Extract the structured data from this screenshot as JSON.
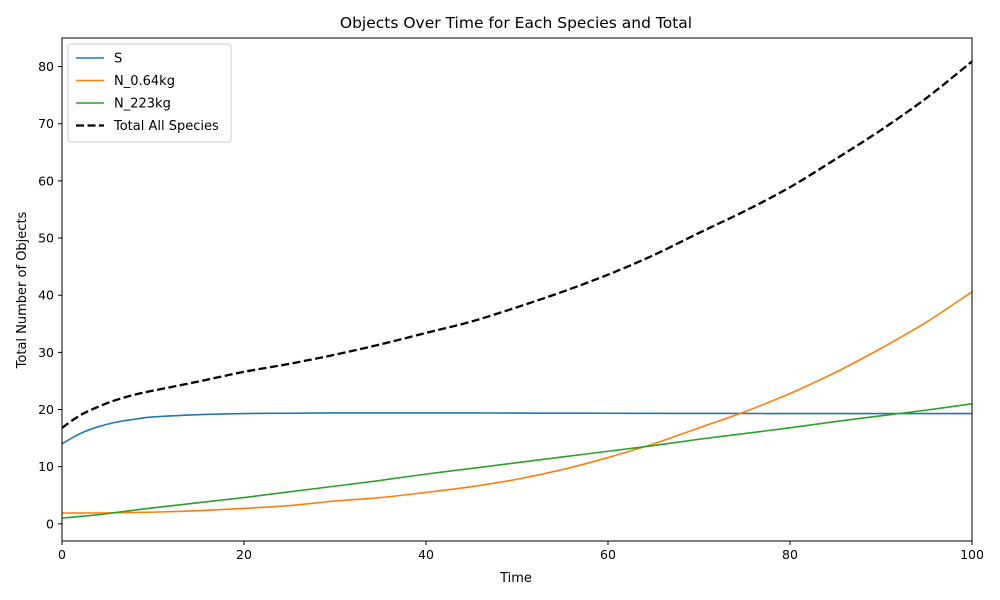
{
  "chart_data": {
    "type": "line",
    "title": "Objects Over Time for Each Species and Total",
    "xlabel": "Time",
    "ylabel": "Total Number of Objects",
    "xlim": [
      0,
      100
    ],
    "ylim": [
      -3,
      85
    ],
    "xticks": [
      0,
      20,
      40,
      60,
      80,
      100
    ],
    "yticks": [
      0,
      10,
      20,
      30,
      40,
      50,
      60,
      70,
      80
    ],
    "grid": false,
    "legend_position": "top-left",
    "x": [
      0,
      2,
      4,
      6,
      8,
      10,
      15,
      20,
      25,
      30,
      35,
      40,
      45,
      50,
      55,
      60,
      65,
      70,
      75,
      80,
      85,
      90,
      95,
      100
    ],
    "series": [
      {
        "name": "S",
        "color": "#1f77b4",
        "style": "solid",
        "values": [
          14.0,
          15.8,
          17.0,
          17.8,
          18.3,
          18.7,
          19.1,
          19.3,
          19.35,
          19.4,
          19.4,
          19.4,
          19.4,
          19.38,
          19.36,
          19.35,
          19.33,
          19.32,
          19.31,
          19.3,
          19.3,
          19.3,
          19.3,
          19.3
        ]
      },
      {
        "name": "N_0.64kg",
        "color": "#ff7f0e",
        "style": "solid",
        "values": [
          1.9,
          1.9,
          1.9,
          1.95,
          2.0,
          2.05,
          2.3,
          2.7,
          3.2,
          4.0,
          4.6,
          5.5,
          6.5,
          7.8,
          9.5,
          11.6,
          14.0,
          16.8,
          19.6,
          22.8,
          26.5,
          30.7,
          35.3,
          40.6
        ]
      },
      {
        "name": "N_223kg",
        "color": "#2ca02c",
        "style": "solid",
        "values": [
          1.0,
          1.3,
          1.6,
          2.0,
          2.4,
          2.8,
          3.7,
          4.6,
          5.6,
          6.6,
          7.6,
          8.7,
          9.7,
          10.7,
          11.7,
          12.7,
          13.7,
          14.8,
          15.8,
          16.8,
          17.9,
          18.9,
          19.9,
          21.0
        ]
      },
      {
        "name": "Total All Species",
        "color": "#000000",
        "style": "dashed",
        "values": [
          16.8,
          19.0,
          20.5,
          21.7,
          22.6,
          23.3,
          24.9,
          26.6,
          28.0,
          29.6,
          31.4,
          33.4,
          35.4,
          37.9,
          40.6,
          43.6,
          47.0,
          50.9,
          54.7,
          58.9,
          63.8,
          68.9,
          74.5,
          80.9
        ]
      }
    ]
  }
}
